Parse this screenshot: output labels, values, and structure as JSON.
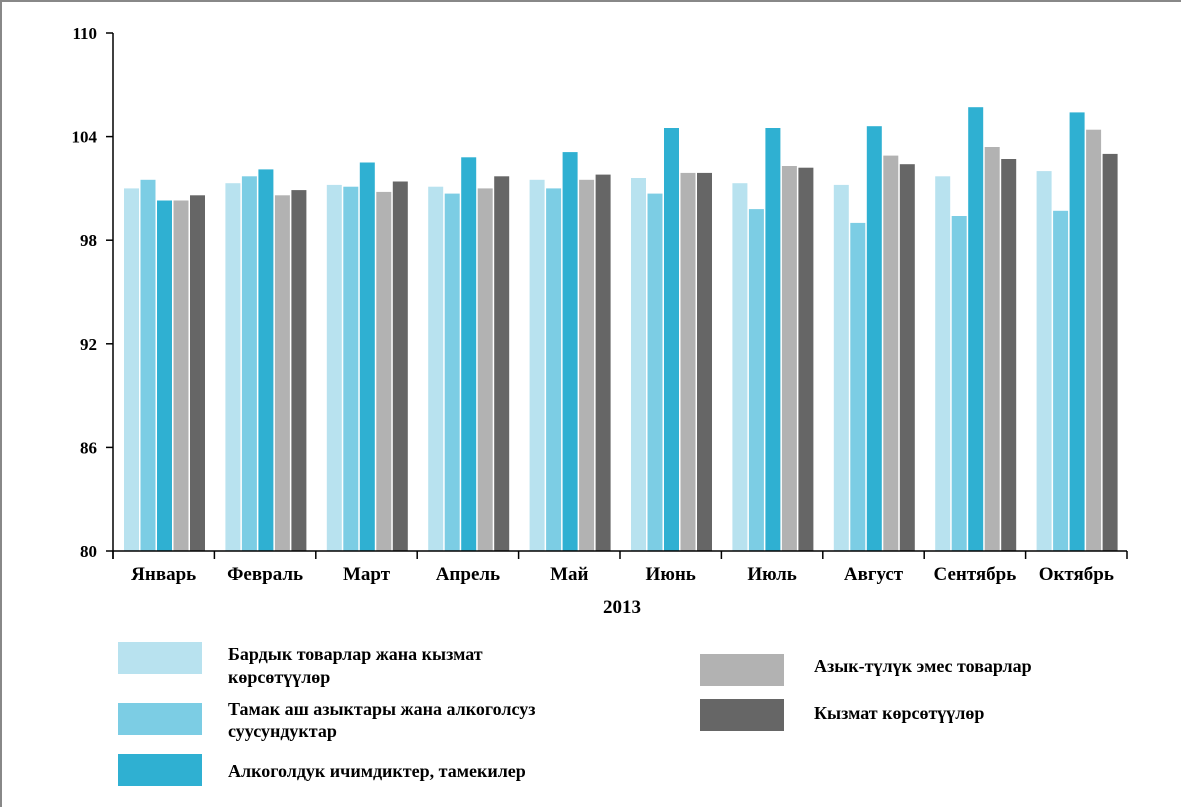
{
  "chart_data": {
    "type": "bar",
    "title": "",
    "xlabel": "2013",
    "ylabel": "",
    "ylim": [
      80,
      110
    ],
    "yticks": [
      80,
      86,
      92,
      98,
      104,
      110
    ],
    "grid": false,
    "legend_position": "bottom",
    "categories": [
      "Январь",
      "Февраль",
      "Март",
      "Апрель",
      "Май",
      "Июнь",
      "Июль",
      "Август",
      "Сентябрь",
      "Октябрь"
    ],
    "series": [
      {
        "name": "Бардык товарлар жана кызмат көрсөтүүлөр",
        "color": "#b8e2ef",
        "values": [
          101.0,
          101.3,
          101.2,
          101.1,
          101.5,
          101.6,
          101.3,
          101.2,
          101.7,
          102.0
        ]
      },
      {
        "name": "Тамак аш азыктары жана алкоголсуз суусундуктар",
        "color": "#7ccde4",
        "values": [
          101.5,
          101.7,
          101.1,
          100.7,
          101.0,
          100.7,
          99.8,
          99.0,
          99.4,
          99.7
        ]
      },
      {
        "name": "Алкоголдук ичимдиктер, тамекилер",
        "color": "#2fb0d2",
        "values": [
          100.3,
          102.1,
          102.5,
          102.8,
          103.1,
          104.5,
          104.5,
          104.6,
          105.7,
          105.4
        ]
      },
      {
        "name": "Азык-түлүк эмес товарлар",
        "color": "#b2b2b2",
        "values": [
          100.3,
          100.6,
          100.8,
          101.0,
          101.5,
          101.9,
          102.3,
          102.9,
          103.4,
          104.4
        ]
      },
      {
        "name": "Кызмат көрсөтүүлөр",
        "color": "#666666",
        "values": [
          100.6,
          100.9,
          101.4,
          101.7,
          101.8,
          101.9,
          102.2,
          102.4,
          102.7,
          103.0
        ]
      }
    ]
  }
}
